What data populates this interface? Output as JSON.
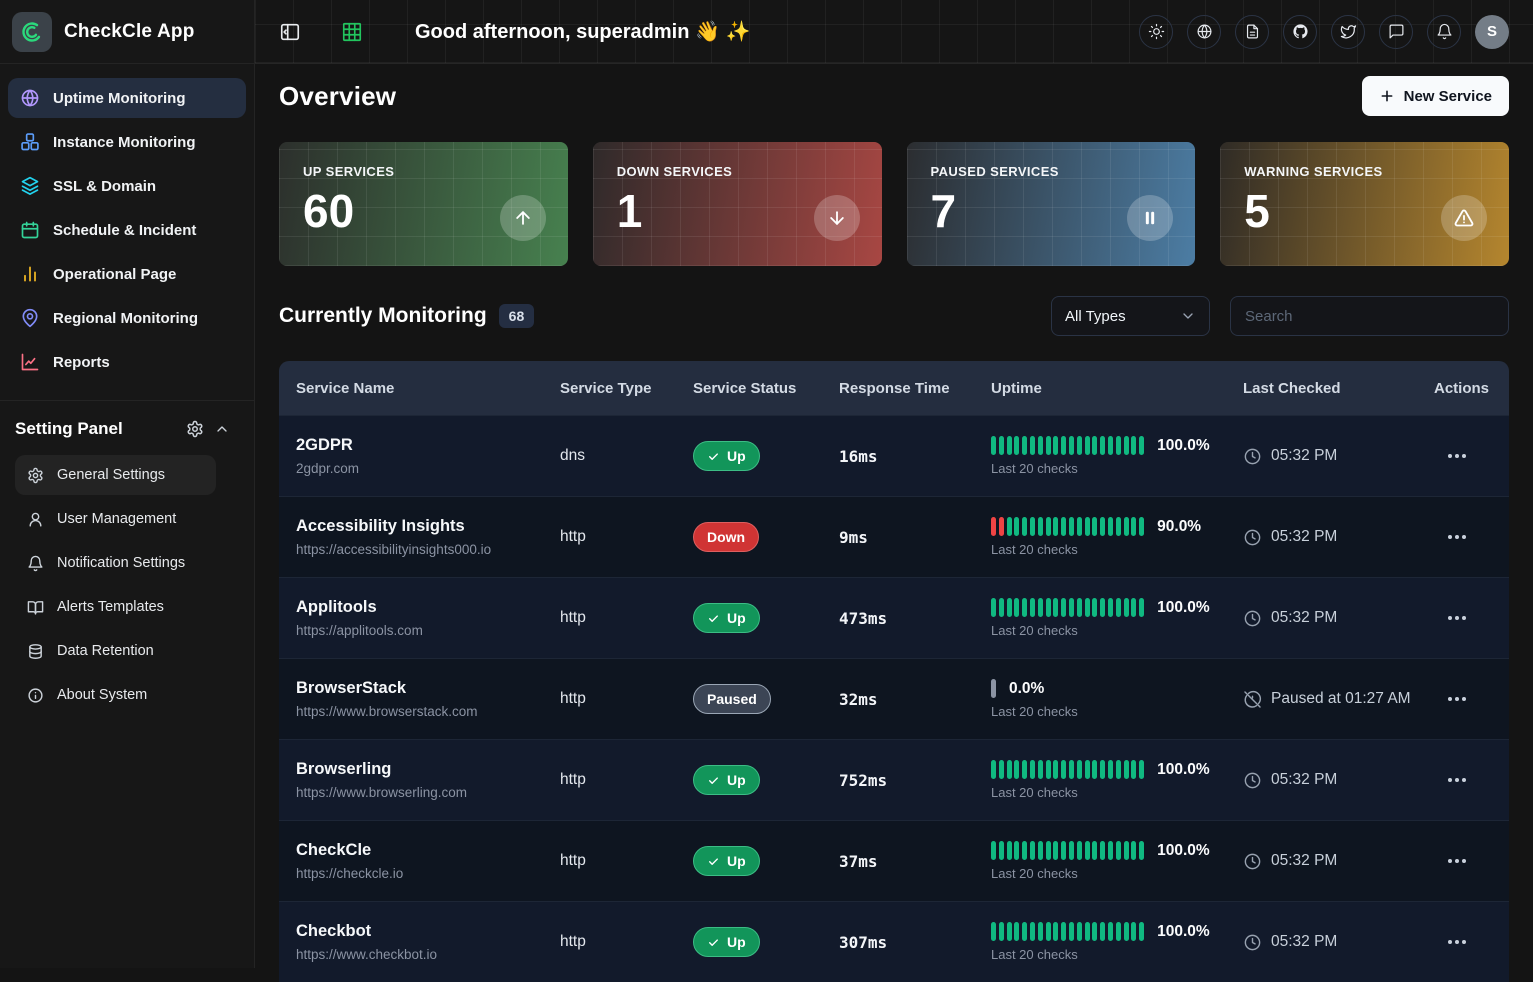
{
  "app": {
    "name": "CheckCle App"
  },
  "header": {
    "greeting": "Good afternoon, superadmin 👋 ✨",
    "left_icons": [
      {
        "name": "sidebar-collapse",
        "icon": "panel-left",
        "color": "#e9ecef"
      },
      {
        "name": "grid-menu",
        "icon": "grid",
        "color": "#22c55e"
      }
    ],
    "right_icons": [
      {
        "name": "theme-toggle",
        "icon": "sun"
      },
      {
        "name": "language",
        "icon": "globe"
      },
      {
        "name": "docs",
        "icon": "file-text"
      },
      {
        "name": "github",
        "icon": "github"
      },
      {
        "name": "twitter",
        "icon": "twitter"
      },
      {
        "name": "feedback",
        "icon": "message"
      },
      {
        "name": "notifications",
        "icon": "bell"
      }
    ],
    "avatar_initial": "S"
  },
  "sidebar": {
    "nav": [
      {
        "label": "Uptime Monitoring",
        "icon": "globe",
        "color": "#b197fc",
        "active": true
      },
      {
        "label": "Instance Monitoring",
        "icon": "boxes",
        "color": "#5c9dfa",
        "active": false
      },
      {
        "label": "SSL & Domain",
        "icon": "layers",
        "color": "#22d3ee",
        "active": false
      },
      {
        "label": "Schedule & Incident",
        "icon": "calendar",
        "color": "#34d399",
        "active": false
      },
      {
        "label": "Operational Page",
        "icon": "bar-chart",
        "color": "#fbbf24",
        "active": false
      },
      {
        "label": "Regional Monitoring",
        "icon": "map-pin",
        "color": "#818cf8",
        "active": false
      },
      {
        "label": "Reports",
        "icon": "chart-line",
        "color": "#fb7185",
        "active": false
      }
    ],
    "settings": {
      "title": "Setting Panel",
      "items": [
        {
          "label": "General Settings",
          "icon": "gear",
          "active": true
        },
        {
          "label": "User Management",
          "icon": "user",
          "active": false
        },
        {
          "label": "Notification Settings",
          "icon": "bell",
          "active": false
        },
        {
          "label": "Alerts Templates",
          "icon": "book-open",
          "active": false
        },
        {
          "label": "Data Retention",
          "icon": "database",
          "active": false
        },
        {
          "label": "About System",
          "icon": "info",
          "active": false
        }
      ]
    }
  },
  "overview": {
    "title": "Overview",
    "new_service_label": "New Service",
    "cards": [
      {
        "label": "UP SERVICES",
        "value": "60",
        "icon": "arrow-up",
        "from": "#2c2f2c",
        "to": "#47814f"
      },
      {
        "label": "DOWN SERVICES",
        "value": "1",
        "icon": "arrow-down",
        "from": "#2f2a2a",
        "to": "#a84743"
      },
      {
        "label": "PAUSED SERVICES",
        "value": "7",
        "icon": "pause",
        "from": "#2b2d30",
        "to": "#4c7da4"
      },
      {
        "label": "WARNING SERVICES",
        "value": "5",
        "icon": "alert-triangle",
        "from": "#2f2b26",
        "to": "#b5862e"
      }
    ]
  },
  "monitoring": {
    "title": "Currently Monitoring",
    "count": "68",
    "type_filter": "All Types",
    "search_placeholder": "Search",
    "columns": [
      "Service Name",
      "Service Type",
      "Service Status",
      "Response Time",
      "Uptime",
      "Last Checked",
      "Actions"
    ],
    "checks_label": "Last 20 checks",
    "status_styles": {
      "Up": {
        "bg": "#12955a",
        "border": "#3cbd85"
      },
      "Down": {
        "bg": "#d03434",
        "border": "#dd5f5f"
      },
      "Paused": {
        "bg": "#3c4555",
        "border": "#9aa6b5"
      }
    },
    "bar_colors": {
      "up": "#10b981",
      "down": "#ef4444",
      "paused": "#8b93a3"
    },
    "rows": [
      {
        "name": "2GDPR",
        "url": "2gdpr.com",
        "type": "dns",
        "status": "Up",
        "response": "16ms",
        "uptime": "100.0%",
        "bars": {
          "down": 0,
          "up": 20
        },
        "checked": "05:32 PM",
        "checked_icon": "clock"
      },
      {
        "name": "Accessibility Insights",
        "url": "https://accessibilityinsights000.io",
        "type": "http",
        "status": "Down",
        "response": "9ms",
        "uptime": "90.0%",
        "bars": {
          "down": 2,
          "up": 18
        },
        "checked": "05:32 PM",
        "checked_icon": "clock"
      },
      {
        "name": "Applitools",
        "url": "https://applitools.com",
        "type": "http",
        "status": "Up",
        "response": "473ms",
        "uptime": "100.0%",
        "bars": {
          "down": 0,
          "up": 20
        },
        "checked": "05:32 PM",
        "checked_icon": "clock"
      },
      {
        "name": "BrowserStack",
        "url": "https://www.browserstack.com",
        "type": "http",
        "status": "Paused",
        "response": "32ms",
        "uptime": "0.0%",
        "bars": {
          "paused": 1
        },
        "checked": "Paused at 01:27 AM",
        "checked_icon": "clock-off"
      },
      {
        "name": "Browserling",
        "url": "https://www.browserling.com",
        "type": "http",
        "status": "Up",
        "response": "752ms",
        "uptime": "100.0%",
        "bars": {
          "down": 0,
          "up": 20
        },
        "checked": "05:32 PM",
        "checked_icon": "clock"
      },
      {
        "name": "CheckCle",
        "url": "https://checkcle.io",
        "type": "http",
        "status": "Up",
        "response": "37ms",
        "uptime": "100.0%",
        "bars": {
          "down": 0,
          "up": 20
        },
        "checked": "05:32 PM",
        "checked_icon": "clock"
      },
      {
        "name": "Checkbot",
        "url": "https://www.checkbot.io",
        "type": "http",
        "status": "Up",
        "response": "307ms",
        "uptime": "100.0%",
        "bars": {
          "down": 0,
          "up": 20
        },
        "checked": "05:32 PM",
        "checked_icon": "clock"
      }
    ]
  }
}
